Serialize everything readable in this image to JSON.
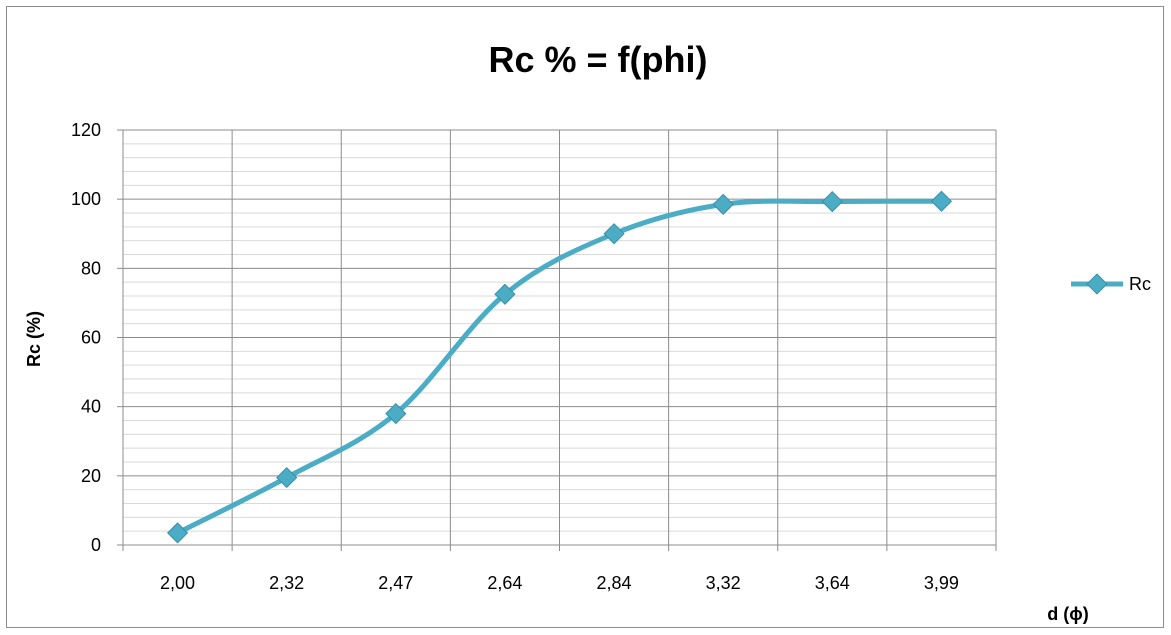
{
  "chart_data": {
    "type": "line",
    "title": "Rc % = f(phi)",
    "xlabel": "d (ϕ)",
    "ylabel": "Rc (%)",
    "categories": [
      "2,00",
      "2,32",
      "2,47",
      "2,64",
      "2,84",
      "3,32",
      "3,64",
      "3,99"
    ],
    "series": [
      {
        "name": "Rc",
        "values": [
          3.5,
          19.5,
          38,
          72.5,
          90,
          98.5,
          99.3,
          99.4
        ]
      }
    ],
    "ylim": [
      0,
      120
    ],
    "y_major_step": 20,
    "y_minor_step": 4,
    "y_ticks": [
      "0",
      "20",
      "40",
      "60",
      "80",
      "100",
      "120"
    ],
    "grid": true,
    "legend_position": "right",
    "series_color": "#4BACC6",
    "marker": "diamond"
  }
}
